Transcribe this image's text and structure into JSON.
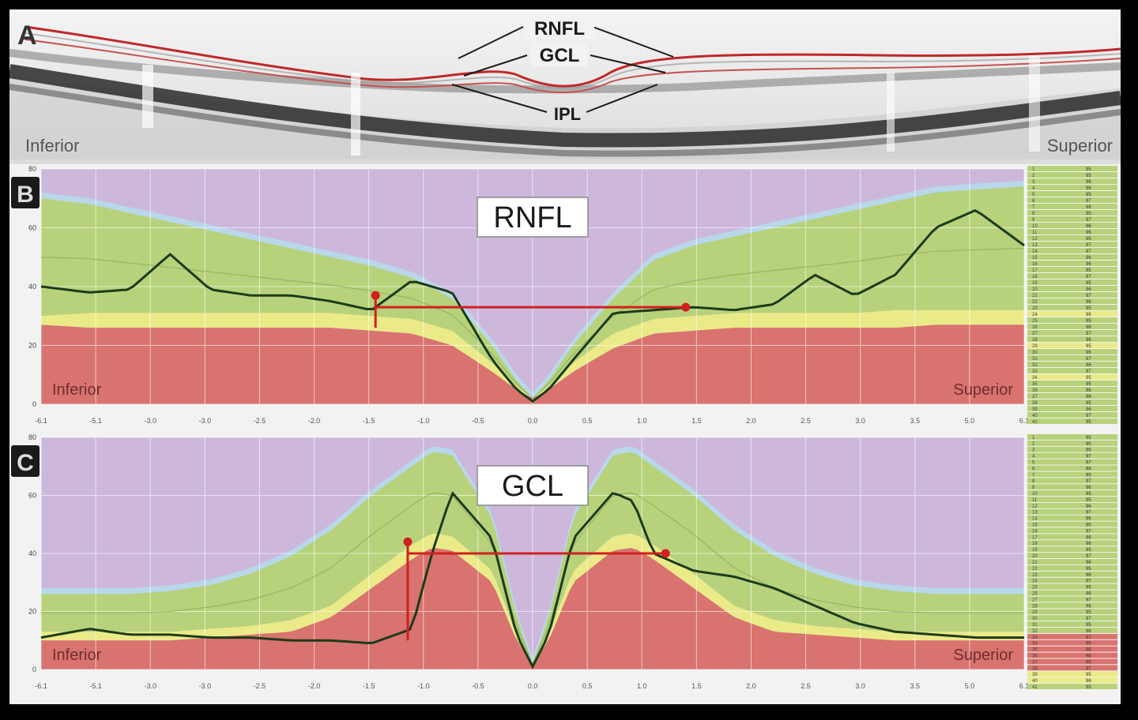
{
  "panels": {
    "a": {
      "letter": "A",
      "left_label": "Inferior",
      "right_label": "Superior",
      "layer_labels": [
        "RNFL",
        "GCL",
        "IPL"
      ]
    },
    "b": {
      "letter": "B",
      "title": "RNFL",
      "left_label": "Inferior",
      "right_label": "Superior",
      "ylim": [
        0,
        80
      ],
      "yticks": [
        0,
        20,
        40,
        60,
        80
      ],
      "xticks": [
        "-6.1",
        "-5.1",
        "-3.0",
        "-3.0",
        "-2.5",
        "-2.0",
        "-1.5",
        "-1.0",
        "-0.5",
        "0.0",
        "0.5",
        "1.0",
        "1.5",
        "2.0",
        "2.5",
        "3.0",
        "3.5",
        "5.0",
        "6.1"
      ],
      "table_values": [
        "95",
        "95",
        "96",
        "96",
        "95",
        "97",
        "98",
        "95",
        "97",
        "96",
        "96",
        "95",
        "97",
        "97",
        "96",
        "96",
        "95",
        "97",
        "95",
        "96",
        "97",
        "96",
        "95",
        "96",
        "95",
        "96",
        "97",
        "96",
        "95",
        "96",
        "97",
        "96",
        "97",
        "95",
        "95",
        "96",
        "96",
        "95",
        "96",
        "97",
        "95"
      ]
    },
    "c": {
      "letter": "C",
      "title": "GCL",
      "left_label": "Inferior",
      "right_label": "Superior",
      "ylim": [
        0,
        80
      ],
      "yticks": [
        0,
        20,
        40,
        60,
        80
      ],
      "xticks": [
        "-6.1",
        "-5.1",
        "-3.0",
        "-3.0",
        "-2.5",
        "-2.0",
        "-1.5",
        "-1.0",
        "-0.5",
        "0.0",
        "0.5",
        "1.0",
        "1.5",
        "2.0",
        "2.5",
        "3.0",
        "3.5",
        "5.0",
        "6.1"
      ],
      "table_values": [
        "95",
        "95",
        "96",
        "97",
        "97",
        "96",
        "95",
        "97",
        "96",
        "95",
        "95",
        "96",
        "97",
        "96",
        "95",
        "97",
        "96",
        "96",
        "95",
        "97",
        "96",
        "95",
        "96",
        "97",
        "95",
        "96",
        "97",
        "96",
        "95",
        "97",
        "95",
        "96",
        "97",
        "95",
        "96",
        "96",
        "95",
        "97",
        "95",
        "96",
        "95"
      ]
    }
  },
  "colors": {
    "above_normal": "#cdb8dc",
    "upper_border": "#b8d8ea",
    "normal": "#b7d27a",
    "borderline": "#eaea88",
    "below_normal": "#d9736f",
    "patient_line": "#1b3b1b",
    "marker": "#d02020",
    "grid": "#ffffff"
  },
  "chart_data": [
    {
      "type": "area",
      "title": "RNFL",
      "xlim": [
        -6.1,
        6.1
      ],
      "ylim": [
        0,
        80
      ],
      "x": [
        -6.1,
        -5.5,
        -5.0,
        -4.5,
        -4.0,
        -3.5,
        -3.0,
        -2.5,
        -2.0,
        -1.5,
        -1.0,
        -0.5,
        -0.2,
        0.0,
        0.2,
        0.5,
        1.0,
        1.5,
        2.0,
        2.5,
        3.0,
        3.5,
        4.0,
        4.5,
        5.0,
        5.5,
        6.1
      ],
      "series": [
        {
          "name": "percentile_5",
          "values": [
            27,
            26,
            26,
            26,
            26,
            26,
            26,
            26,
            25,
            24,
            20,
            11,
            5,
            2,
            5,
            11,
            19,
            24,
            25,
            26,
            26,
            26,
            26,
            26,
            27,
            27,
            27
          ]
        },
        {
          "name": "percentile_1",
          "values": [
            30,
            31,
            31,
            31,
            31,
            31,
            31,
            31,
            30,
            29,
            25,
            14,
            6,
            2,
            6,
            14,
            24,
            29,
            30,
            31,
            31,
            31,
            31,
            32,
            32,
            32,
            32
          ]
        },
        {
          "name": "percentile_95",
          "values": [
            70,
            68,
            65,
            62,
            59,
            56,
            53,
            50,
            47,
            43,
            36,
            20,
            8,
            2,
            8,
            20,
            36,
            49,
            54,
            57,
            60,
            63,
            66,
            69,
            72,
            73,
            74
          ]
        },
        {
          "name": "patient",
          "values": [
            40,
            38,
            39,
            51,
            39,
            37,
            37,
            35,
            32,
            42,
            38,
            15,
            5,
            1,
            5,
            15,
            31,
            32,
            33,
            32,
            34,
            44,
            37,
            44,
            60,
            66,
            54
          ]
        }
      ]
    },
    {
      "type": "area",
      "title": "GCL",
      "xlim": [
        -6.1,
        6.1
      ],
      "ylim": [
        0,
        80
      ],
      "x": [
        -6.1,
        -5.5,
        -5.0,
        -4.5,
        -4.0,
        -3.5,
        -3.0,
        -2.5,
        -2.0,
        -1.5,
        -1.25,
        -1.0,
        -0.5,
        -0.2,
        0.0,
        0.2,
        0.5,
        1.0,
        1.25,
        1.5,
        2.0,
        2.5,
        3.0,
        3.5,
        4.0,
        4.5,
        5.0,
        5.5,
        6.1
      ],
      "series": [
        {
          "name": "percentile_5",
          "values": [
            10,
            10,
            10,
            10,
            11,
            12,
            13,
            18,
            28,
            38,
            42,
            41,
            30,
            10,
            2,
            10,
            30,
            41,
            42,
            38,
            28,
            18,
            13,
            12,
            11,
            10,
            10,
            10,
            10
          ]
        },
        {
          "name": "percentile_1",
          "values": [
            13,
            13,
            13,
            13,
            14,
            15,
            17,
            22,
            33,
            43,
            47,
            46,
            34,
            12,
            2,
            12,
            34,
            46,
            47,
            43,
            33,
            22,
            17,
            15,
            14,
            13,
            13,
            13,
            13
          ]
        },
        {
          "name": "percentile_95",
          "values": [
            26,
            26,
            26,
            27,
            29,
            33,
            39,
            48,
            60,
            70,
            75,
            74,
            52,
            18,
            2,
            18,
            52,
            74,
            75,
            70,
            60,
            48,
            39,
            33,
            29,
            27,
            26,
            26,
            26
          ]
        },
        {
          "name": "patient",
          "values": [
            11,
            14,
            12,
            12,
            11,
            11,
            10,
            10,
            9,
            14,
            40,
            61,
            45,
            12,
            1,
            12,
            45,
            61,
            58,
            40,
            34,
            32,
            28,
            22,
            16,
            13,
            12,
            11,
            11
          ]
        }
      ]
    }
  ]
}
